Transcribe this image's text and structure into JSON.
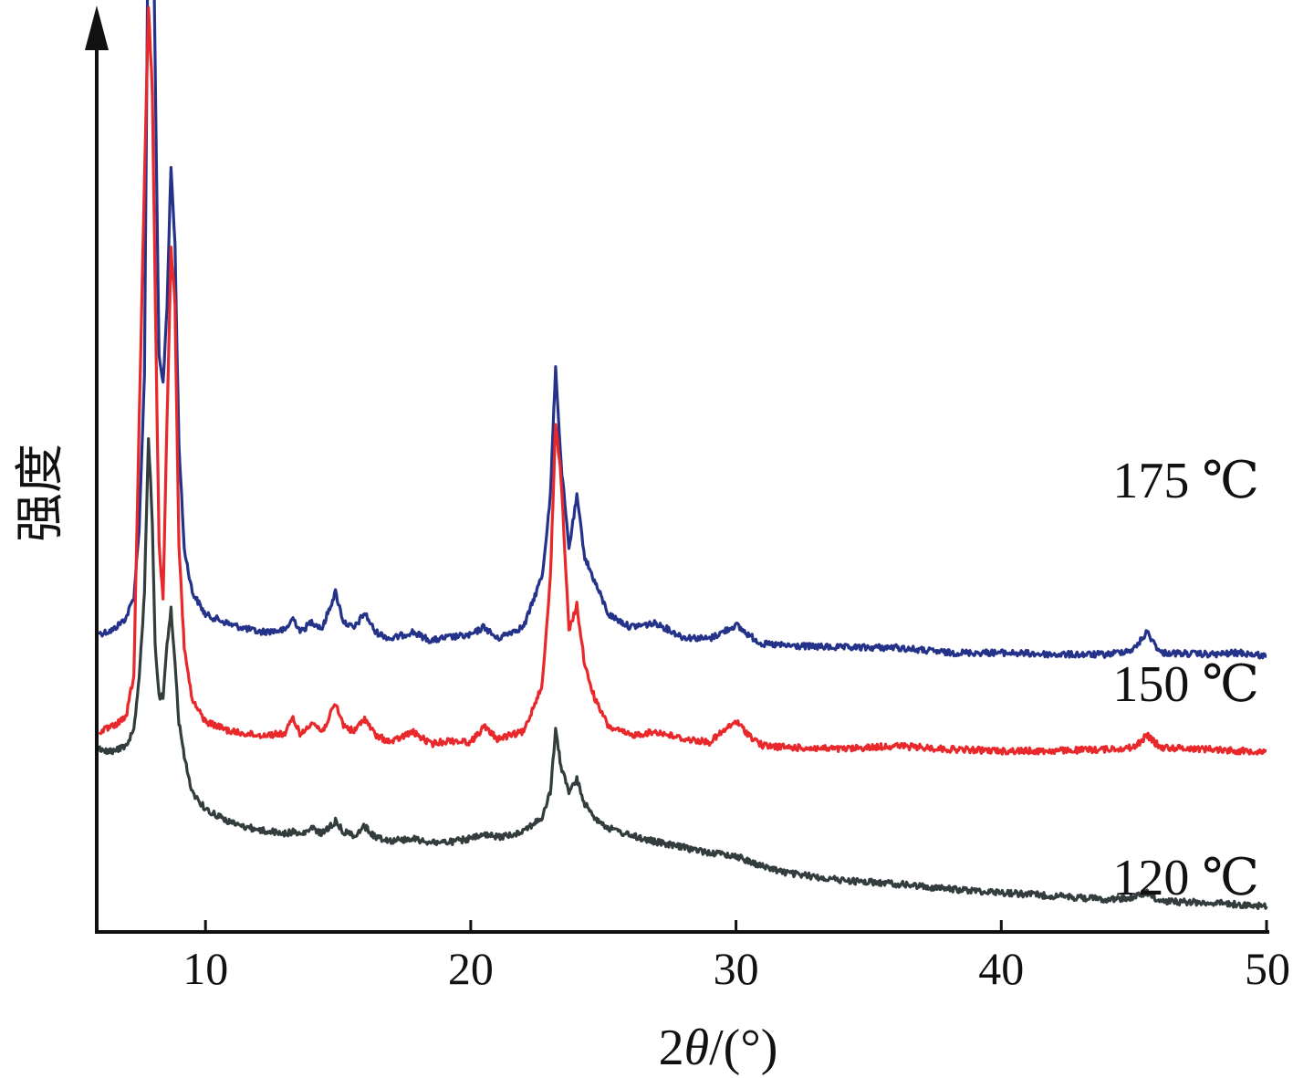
{
  "chart_data": {
    "type": "line",
    "title": "",
    "xlabel_prefix": "2",
    "xlabel_theta": "θ",
    "xlabel_suffix": "/(°)",
    "ylabel": "强度",
    "xlim": [
      5.9,
      50
    ],
    "xticks": [
      10,
      20,
      30,
      40,
      50
    ],
    "y_ticks_shown": false,
    "grid": false,
    "series": [
      {
        "name": "175 ℃",
        "color": "#24328a",
        "offset": 36,
        "x": [
          6.0,
          6.5,
          7.0,
          7.3,
          7.5,
          7.7,
          7.85,
          8.0,
          8.1,
          8.25,
          8.4,
          8.55,
          8.7,
          8.85,
          9.0,
          9.2,
          9.5,
          10.0,
          11.0,
          12.0,
          13.0,
          13.3,
          13.6,
          14.0,
          14.4,
          14.9,
          15.2,
          15.6,
          16.0,
          16.4,
          17.0,
          17.8,
          18.5,
          19.2,
          20.0,
          20.5,
          21.0,
          21.5,
          22.0,
          22.7,
          23.0,
          23.2,
          23.4,
          23.7,
          24.0,
          24.3,
          24.7,
          25.2,
          26.0,
          27.0,
          28.0,
          29.0,
          30.0,
          30.5,
          31.0,
          32.0,
          34.0,
          36.0,
          38.0,
          40.0,
          42.0,
          44.0,
          45.0,
          45.5,
          46.0,
          48.0,
          49.0,
          50.0
        ],
        "y": [
          51,
          53,
          60,
          72,
          112,
          200,
          490,
          505,
          380,
          210,
          195,
          240,
          320,
          275,
          160,
          100,
          75,
          62,
          56,
          52,
          53,
          60,
          52,
          58,
          54,
          75,
          58,
          54,
          63,
          52,
          48,
          52,
          47,
          49,
          50,
          55,
          48,
          52,
          55,
          85,
          130,
          205,
          150,
          100,
          130,
          95,
          80,
          62,
          55,
          57,
          49,
          48,
          56,
          50,
          45,
          44,
          43,
          43,
          40,
          40,
          39,
          39,
          42,
          52,
          40,
          39,
          40,
          38
        ]
      },
      {
        "name": "150 ℃",
        "color": "#e8282a",
        "offset": 18,
        "x": [
          6.0,
          6.5,
          7.0,
          7.3,
          7.5,
          7.7,
          7.85,
          8.0,
          8.1,
          8.25,
          8.4,
          8.55,
          8.7,
          8.85,
          9.0,
          9.2,
          9.5,
          10.0,
          11.0,
          12.0,
          13.0,
          13.3,
          13.6,
          14.0,
          14.4,
          14.9,
          15.2,
          15.6,
          16.0,
          16.4,
          17.0,
          17.8,
          18.5,
          19.2,
          20.0,
          20.5,
          21.0,
          21.5,
          22.0,
          22.7,
          23.0,
          23.2,
          23.4,
          23.7,
          24.0,
          24.3,
          24.7,
          25.2,
          26.0,
          27.0,
          28.0,
          29.0,
          30.0,
          30.5,
          31.0,
          32.0,
          34.0,
          36.0,
          38.0,
          40.0,
          42.0,
          44.0,
          45.0,
          45.5,
          46.0,
          48.0,
          49.0,
          50.0
        ],
        "y": [
          52,
          55,
          60,
          85,
          230,
          370,
          470,
          420,
          310,
          160,
          130,
          230,
          330,
          300,
          160,
          100,
          70,
          58,
          52,
          50,
          51,
          60,
          50,
          58,
          52,
          68,
          56,
          52,
          60,
          50,
          46,
          52,
          45,
          47,
          46,
          55,
          48,
          50,
          52,
          80,
          140,
          230,
          200,
          110,
          125,
          90,
          70,
          55,
          50,
          52,
          48,
          46,
          58,
          50,
          44,
          43,
          42,
          44,
          42,
          41,
          41,
          42,
          43,
          50,
          43,
          42,
          41,
          41
        ]
      },
      {
        "name": "120 ℃",
        "color": "#333d3d",
        "offset": 0,
        "x": [
          6.0,
          6.5,
          7.0,
          7.3,
          7.5,
          7.7,
          7.85,
          8.0,
          8.1,
          8.25,
          8.4,
          8.55,
          8.7,
          8.85,
          9.0,
          9.2,
          9.5,
          10.0,
          11.0,
          12.0,
          13.0,
          13.3,
          13.6,
          14.0,
          14.4,
          14.9,
          15.2,
          15.6,
          16.0,
          16.4,
          17.0,
          17.8,
          18.5,
          19.2,
          20.0,
          20.5,
          21.0,
          21.5,
          22.0,
          22.7,
          23.0,
          23.2,
          23.4,
          23.7,
          24.0,
          24.3,
          24.7,
          25.2,
          26.0,
          27.0,
          28.0,
          29.0,
          30.0,
          30.5,
          31.0,
          32.0,
          34.0,
          36.0,
          38.0,
          40.0,
          42.0,
          44.0,
          45.0,
          45.5,
          46.0,
          48.0,
          49.0,
          50.0
        ],
        "y": [
          100,
          98,
          102,
          110,
          140,
          190,
          280,
          230,
          160,
          130,
          130,
          160,
          180,
          150,
          115,
          95,
          75,
          65,
          57,
          53,
          51,
          52,
          50,
          54,
          51,
          58,
          52,
          50,
          55,
          49,
          47,
          48,
          46,
          46,
          48,
          50,
          49,
          50,
          53,
          60,
          75,
          110,
          90,
          75,
          82,
          68,
          60,
          54,
          50,
          46,
          43,
          40,
          38,
          35,
          32,
          28,
          24,
          22,
          19,
          17,
          15,
          13,
          14,
          17,
          12,
          11,
          10,
          9
        ]
      }
    ]
  }
}
